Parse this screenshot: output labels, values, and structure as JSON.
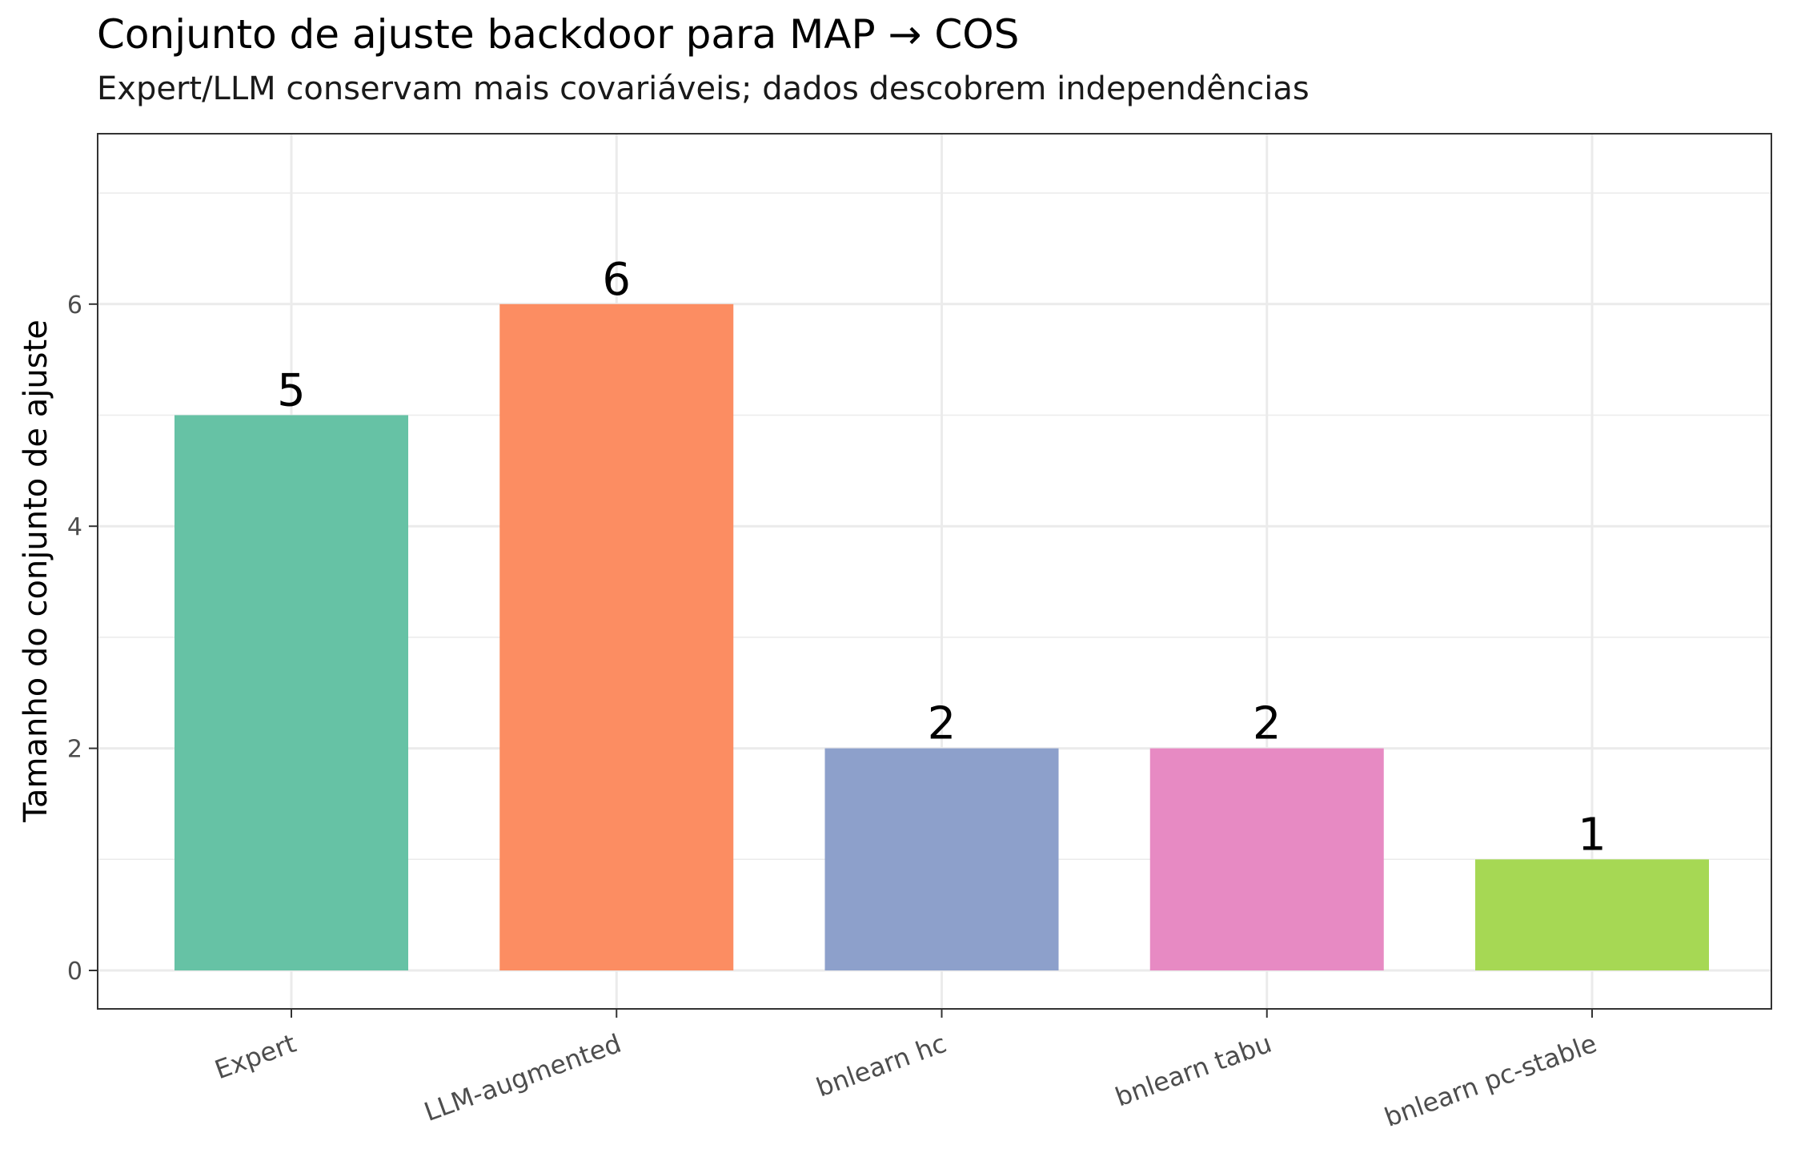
{
  "chart_data": {
    "type": "bar",
    "title": "Conjunto de ajuste backdoor para MAP → COS",
    "subtitle": "Expert/LLM conservam mais covariáveis; dados descobrem independências",
    "xlabel": "",
    "ylabel": "Tamanho do conjunto de ajuste",
    "categories": [
      "Expert",
      "LLM-augmented",
      "bnlearn hc",
      "bnlearn tabu",
      "bnlearn pc-stable"
    ],
    "values": [
      5,
      6,
      2,
      2,
      1
    ],
    "data_labels": [
      "5",
      "6",
      "2",
      "2",
      "1"
    ],
    "colors": [
      "#66c2a5",
      "#fc8d62",
      "#8da0cb",
      "#e78ac3",
      "#a6d854"
    ],
    "ylim": [
      -0.35,
      7.55
    ],
    "yticks": [
      0,
      2,
      4,
      6
    ],
    "ytick_labels": [
      "0",
      "2",
      "4",
      "6"
    ],
    "grid": true,
    "legend": "none"
  }
}
